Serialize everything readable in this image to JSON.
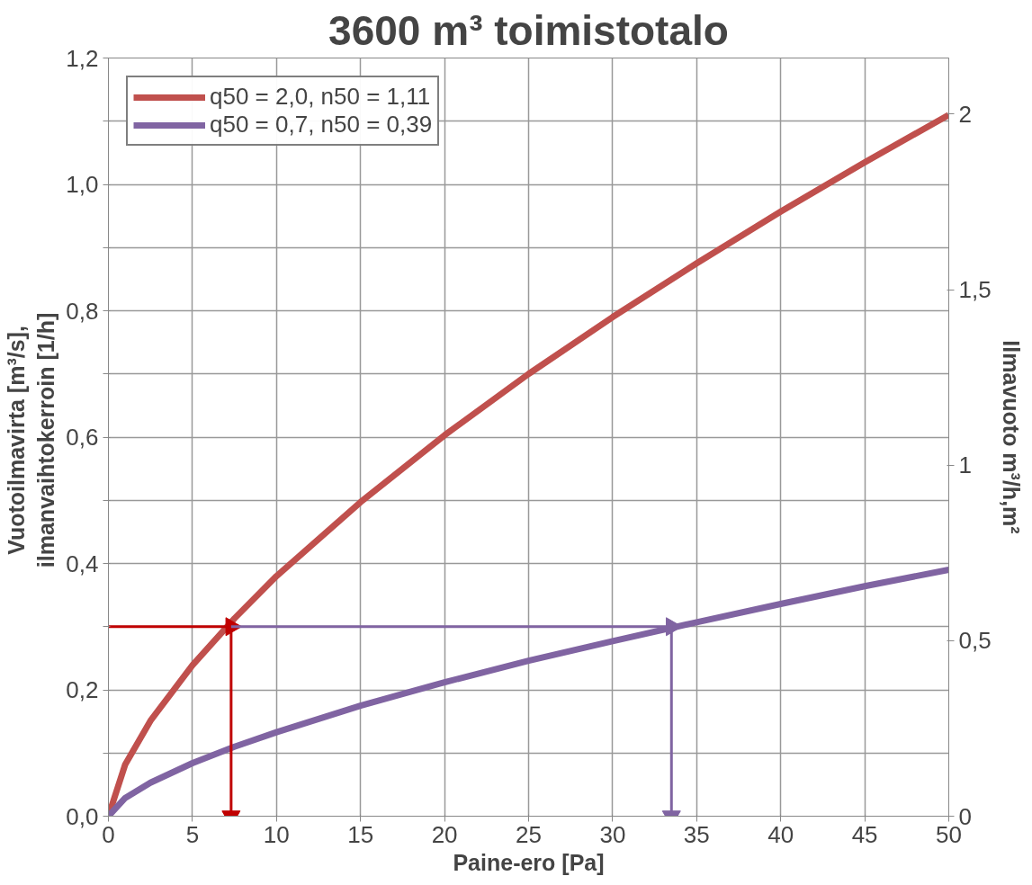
{
  "chart_data": {
    "type": "line",
    "title": "3600 m³ toimistotalo",
    "xlabel": "Paine-ero [Pa]",
    "ylabel": "Vuotoilmavirta  [m³/s],\nilmanvaihtokerroin  [1/h]",
    "y2label": "Ilmavuoto m³/h,m²",
    "xlim": [
      0,
      50
    ],
    "xticks": [
      0,
      5,
      10,
      15,
      20,
      25,
      30,
      35,
      40,
      45,
      50
    ],
    "ylim": [
      0,
      1.2
    ],
    "yticks": [
      {
        "value": 0,
        "label": "0,0"
      },
      {
        "value": 0.1,
        "label": null
      },
      {
        "value": 0.2,
        "label": "0,2"
      },
      {
        "value": 0.3,
        "label": null
      },
      {
        "value": 0.4,
        "label": "0,4"
      },
      {
        "value": 0.5,
        "label": null
      },
      {
        "value": 0.6,
        "label": "0,6"
      },
      {
        "value": 0.7,
        "label": null
      },
      {
        "value": 0.8,
        "label": "0,8"
      },
      {
        "value": 0.9,
        "label": null
      },
      {
        "value": 1.0,
        "label": "1,0"
      },
      {
        "value": 1.1,
        "label": null
      },
      {
        "value": 1.2,
        "label": "1,2"
      }
    ],
    "y2lim": [
      0,
      2.16
    ],
    "y2ticks": [
      0,
      {
        "value": 0.5,
        "label": "0,5"
      },
      1,
      {
        "value": 1.5,
        "label": "1,5"
      },
      2
    ],
    "grid": true,
    "legend": "top left",
    "marker": "none",
    "line_style": "solid",
    "series": [
      {
        "name": "q50 = 2,0, n50 = 1,11",
        "color": "#c0504d",
        "x": [
          0,
          1,
          2.5,
          5,
          7.5,
          10,
          15,
          20,
          25,
          30,
          35,
          40,
          45,
          50
        ],
        "values": [
          0,
          0.082,
          0.151,
          0.239,
          0.313,
          0.38,
          0.497,
          0.603,
          0.7,
          0.79,
          0.875,
          0.957,
          1.035,
          1.11
        ]
      },
      {
        "name": "q50 = 0,7, n50 = 0,39",
        "color": "#8064a2",
        "x": [
          0,
          1,
          2.5,
          5,
          7.5,
          10,
          15,
          20,
          25,
          30,
          35,
          40,
          45,
          50
        ],
        "values": [
          0,
          0.029,
          0.053,
          0.084,
          0.11,
          0.133,
          0.175,
          0.212,
          0.246,
          0.277,
          0.307,
          0.336,
          0.364,
          0.39
        ]
      },
      {
        "type": "line",
        "marker": "triangle",
        "color": "#c00000",
        "x": [
          0,
          7.3
        ],
        "values": [
          0.3,
          0.3
        ]
      },
      {
        "type": "line",
        "marker": "triangle",
        "color": "#c00000",
        "x": [
          7.3,
          7.3
        ],
        "values": [
          0.3,
          0
        ]
      },
      {
        "type": "line",
        "marker": "triangle",
        "color": "#8064a2",
        "x": [
          7.3,
          33.5
        ],
        "values": [
          0.3,
          0.3
        ]
      },
      {
        "type": "line",
        "marker": "triangle",
        "color": "#8064a2",
        "x": [
          33.5,
          33.5
        ],
        "values": [
          0.3,
          0
        ]
      }
    ]
  }
}
